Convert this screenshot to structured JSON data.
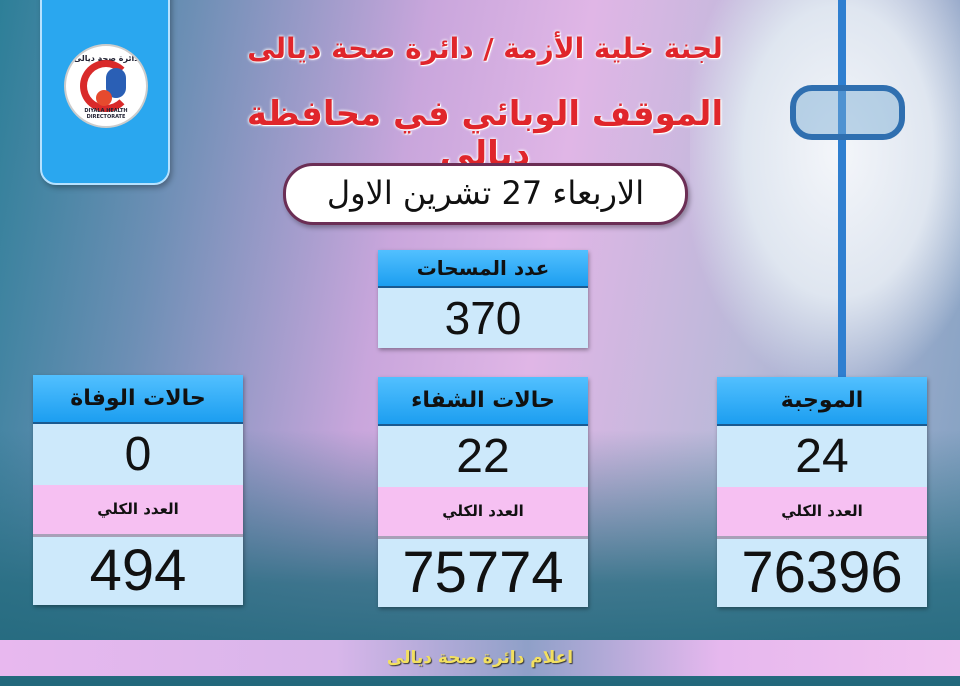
{
  "logo": {
    "arabic_text": "دائرة صحة ديالى",
    "english_text": "DIYALA HEALTH DIRECTORATE"
  },
  "header": {
    "line1": "لجنة خلية الأزمة / دائرة صحة ديالى",
    "line2": "الموقف الوبائي في محافظة ديالى"
  },
  "date": "الاربعاء 27 تشرين الاول",
  "tests": {
    "label": "عدد المسحات",
    "value": "370"
  },
  "cards": [
    {
      "label": "الموجبة",
      "daily": "24",
      "total_label": "العدد الكلي",
      "total": "76396"
    },
    {
      "label": "حالات الشفاء",
      "daily": "22",
      "total_label": "العدد الكلي",
      "total": "75774"
    },
    {
      "label": "حالات الوفاة",
      "daily": "0",
      "total_label": "العدد الكلي",
      "total": "494"
    }
  ],
  "footer": "اعلام دائرة صحة ديالى",
  "colors": {
    "title_red": "#e0262b",
    "header_blue": "#2aa7ef",
    "value_bg": "#cde9fb",
    "pink": "#f6c0f2"
  }
}
